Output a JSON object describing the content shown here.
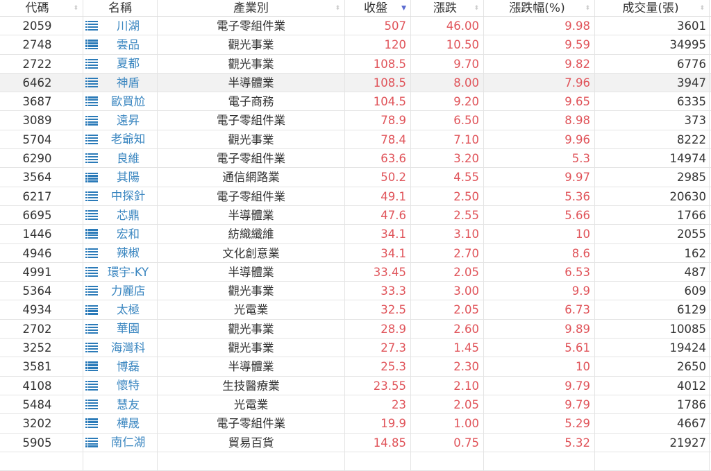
{
  "header": {
    "code": "代碼",
    "name": "名稱",
    "industry": "產業別",
    "close": "收盤",
    "change": "漲跌",
    "pct": "漲跌幅(%)",
    "volume": "成交量(張)"
  },
  "colors": {
    "up": "#e0545a",
    "link": "#3a86c0",
    "icon": "#2a7ab8"
  },
  "sort": {
    "column": "close",
    "direction": "desc"
  },
  "rows": [
    {
      "code": "2059",
      "name": "川湖",
      "industry": "電子零組件業",
      "close": "507",
      "change": "46.00",
      "pct": "9.98",
      "volume": "3601"
    },
    {
      "code": "2748",
      "name": "雲品",
      "industry": "觀光事業",
      "close": "120",
      "change": "10.50",
      "pct": "9.59",
      "volume": "34995"
    },
    {
      "code": "2722",
      "name": "夏都",
      "industry": "觀光事業",
      "close": "108.5",
      "change": "9.70",
      "pct": "9.82",
      "volume": "6776"
    },
    {
      "code": "6462",
      "name": "神盾",
      "industry": "半導體業",
      "close": "108.5",
      "change": "8.00",
      "pct": "7.96",
      "volume": "3947"
    },
    {
      "code": "3687",
      "name": "歐買尬",
      "industry": "電子商務",
      "close": "104.5",
      "change": "9.20",
      "pct": "9.65",
      "volume": "6335"
    },
    {
      "code": "3089",
      "name": "遠昇",
      "industry": "電子零組件業",
      "close": "78.9",
      "change": "6.50",
      "pct": "8.98",
      "volume": "373"
    },
    {
      "code": "5704",
      "name": "老爺知",
      "industry": "觀光事業",
      "close": "78.4",
      "change": "7.10",
      "pct": "9.96",
      "volume": "8222"
    },
    {
      "code": "6290",
      "name": "良維",
      "industry": "電子零組件業",
      "close": "63.6",
      "change": "3.20",
      "pct": "5.3",
      "volume": "14974"
    },
    {
      "code": "3564",
      "name": "其陽",
      "industry": "通信網路業",
      "close": "50.2",
      "change": "4.55",
      "pct": "9.97",
      "volume": "2985"
    },
    {
      "code": "6217",
      "name": "中探針",
      "industry": "電子零組件業",
      "close": "49.1",
      "change": "2.50",
      "pct": "5.36",
      "volume": "20630"
    },
    {
      "code": "6695",
      "name": "芯鼎",
      "industry": "半導體業",
      "close": "47.6",
      "change": "2.55",
      "pct": "5.66",
      "volume": "1766"
    },
    {
      "code": "1446",
      "name": "宏和",
      "industry": "紡織纖維",
      "close": "34.1",
      "change": "3.10",
      "pct": "10",
      "volume": "2055"
    },
    {
      "code": "4946",
      "name": "辣椒",
      "industry": "文化創意業",
      "close": "34.1",
      "change": "2.70",
      "pct": "8.6",
      "volume": "162"
    },
    {
      "code": "4991",
      "name": "環宇-KY",
      "industry": "半導體業",
      "close": "33.45",
      "change": "2.05",
      "pct": "6.53",
      "volume": "487"
    },
    {
      "code": "5364",
      "name": "力麗店",
      "industry": "觀光事業",
      "close": "33.3",
      "change": "3.00",
      "pct": "9.9",
      "volume": "609"
    },
    {
      "code": "4934",
      "name": "太極",
      "industry": "光電業",
      "close": "32.5",
      "change": "2.05",
      "pct": "6.73",
      "volume": "6129"
    },
    {
      "code": "2702",
      "name": "華園",
      "industry": "觀光事業",
      "close": "28.9",
      "change": "2.60",
      "pct": "9.89",
      "volume": "10085"
    },
    {
      "code": "3252",
      "name": "海灣科",
      "industry": "觀光事業",
      "close": "27.3",
      "change": "1.45",
      "pct": "5.61",
      "volume": "19424"
    },
    {
      "code": "3581",
      "name": "博磊",
      "industry": "半導體業",
      "close": "25.3",
      "change": "2.30",
      "pct": "10",
      "volume": "2650"
    },
    {
      "code": "4108",
      "name": "懷特",
      "industry": "生技醫療業",
      "close": "23.55",
      "change": "2.10",
      "pct": "9.79",
      "volume": "4012"
    },
    {
      "code": "5484",
      "name": "慧友",
      "industry": "光電業",
      "close": "23",
      "change": "2.05",
      "pct": "9.79",
      "volume": "1786"
    },
    {
      "code": "3202",
      "name": "樺晟",
      "industry": "電子零組件業",
      "close": "19.9",
      "change": "1.00",
      "pct": "5.29",
      "volume": "4667"
    },
    {
      "code": "5905",
      "name": "南仁湖",
      "industry": "貿易百貨",
      "close": "14.85",
      "change": "0.75",
      "pct": "5.32",
      "volume": "21927"
    }
  ]
}
